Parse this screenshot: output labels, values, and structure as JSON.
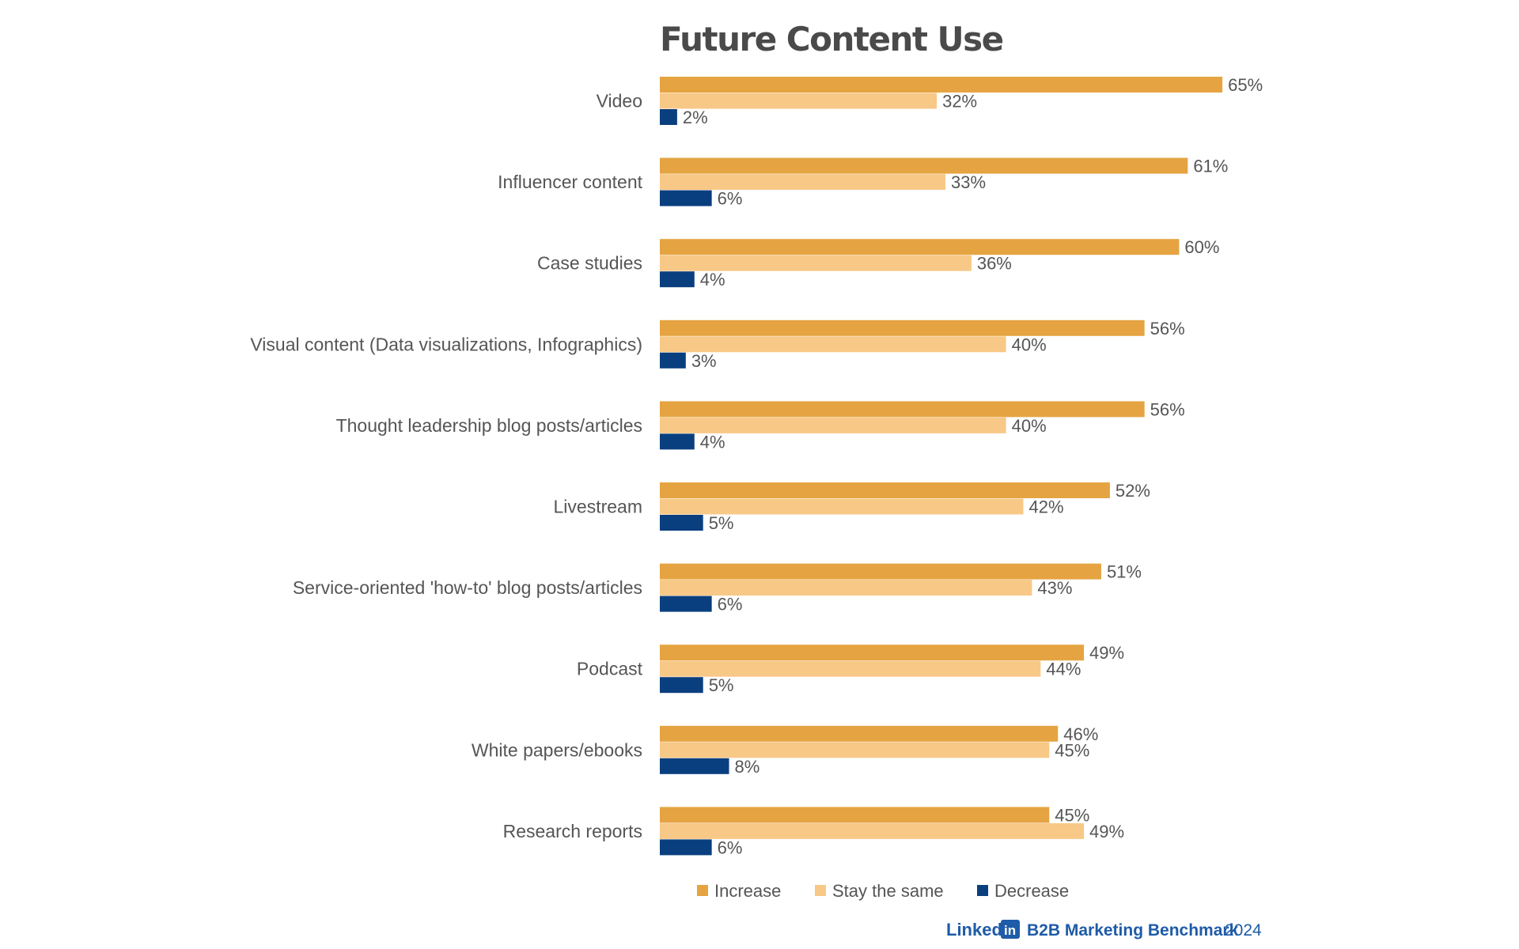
{
  "chart_data": {
    "type": "bar",
    "orientation": "horizontal",
    "title": "Future Content Use",
    "categories": [
      "Video",
      "Influencer content",
      "Case studies",
      "Visual content (Data visualizations, Infographics)",
      "Thought leadership blog posts/articles",
      "Livestream",
      "Service-oriented 'how-to' blog posts/articles",
      "Podcast",
      "White papers/ebooks",
      "Research reports"
    ],
    "series": [
      {
        "name": "Increase",
        "color": "#e5a441",
        "values": [
          65,
          61,
          60,
          56,
          56,
          52,
          51,
          49,
          46,
          45
        ]
      },
      {
        "name": "Stay the same",
        "color": "#f8c887",
        "values": [
          32,
          33,
          36,
          40,
          40,
          42,
          43,
          44,
          45,
          49
        ]
      },
      {
        "name": "Decrease",
        "color": "#0a3f7f",
        "values": [
          2,
          6,
          4,
          3,
          4,
          5,
          6,
          5,
          8,
          6
        ]
      }
    ],
    "value_suffix": "%",
    "xlim": [
      0,
      65
    ],
    "grid": false,
    "legend_position": "bottom"
  },
  "footer": {
    "brand_prefix": "Linked",
    "brand_logo": "in",
    "report": "B2B Marketing Benchmark",
    "year": "2024"
  }
}
